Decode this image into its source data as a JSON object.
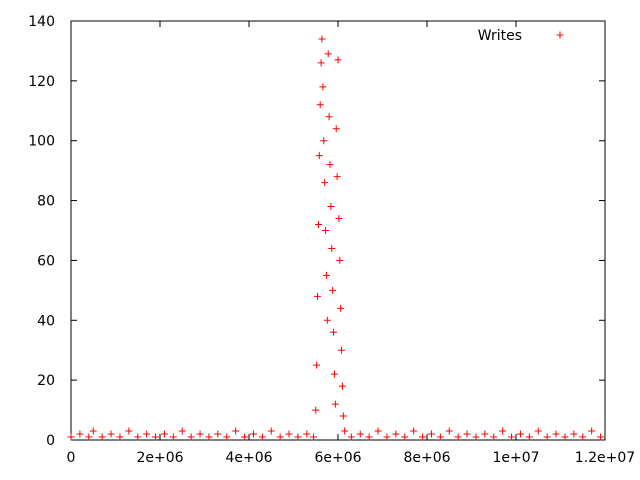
{
  "chart_data": {
    "type": "scatter",
    "title": "",
    "xlabel": "",
    "ylabel": "",
    "xlim": [
      0,
      12000000
    ],
    "ylim": [
      0,
      140
    ],
    "x_ticks": [
      0,
      2000000,
      4000000,
      6000000,
      8000000,
      10000000,
      12000000
    ],
    "x_tick_labels": [
      "0",
      "2e+06",
      "4e+06",
      "6e+06",
      "8e+06",
      "1e+07",
      "1.2e+07"
    ],
    "y_ticks": [
      0,
      20,
      40,
      60,
      80,
      100,
      120,
      140
    ],
    "y_tick_labels": [
      "0",
      "20",
      "40",
      "60",
      "80",
      "100",
      "120",
      "140"
    ],
    "grid": false,
    "legend": {
      "position": "top-right",
      "entries": [
        "Writes"
      ]
    },
    "marker": "+",
    "series": [
      {
        "name": "Writes",
        "color": "#ff0000",
        "points": [
          [
            0,
            1
          ],
          [
            200000,
            2
          ],
          [
            400000,
            1
          ],
          [
            500000,
            3
          ],
          [
            700000,
            1
          ],
          [
            900000,
            2
          ],
          [
            1100000,
            1
          ],
          [
            1300000,
            3
          ],
          [
            1500000,
            1
          ],
          [
            1700000,
            2
          ],
          [
            1900000,
            1
          ],
          [
            2100000,
            2
          ],
          [
            2300000,
            1
          ],
          [
            2500000,
            3
          ],
          [
            2700000,
            1
          ],
          [
            2900000,
            2
          ],
          [
            3100000,
            1
          ],
          [
            3300000,
            2
          ],
          [
            3500000,
            1
          ],
          [
            3700000,
            3
          ],
          [
            3900000,
            1
          ],
          [
            4100000,
            2
          ],
          [
            4300000,
            1
          ],
          [
            4500000,
            3
          ],
          [
            4700000,
            1
          ],
          [
            4900000,
            2
          ],
          [
            5100000,
            1
          ],
          [
            5300000,
            2
          ],
          [
            5450000,
            1
          ],
          [
            5500000,
            10
          ],
          [
            5520000,
            25
          ],
          [
            5540000,
            48
          ],
          [
            5560000,
            72
          ],
          [
            5580000,
            95
          ],
          [
            5600000,
            112
          ],
          [
            5620000,
            126
          ],
          [
            5640000,
            134
          ],
          [
            5660000,
            118
          ],
          [
            5680000,
            100
          ],
          [
            5700000,
            86
          ],
          [
            5720000,
            70
          ],
          [
            5740000,
            55
          ],
          [
            5760000,
            40
          ],
          [
            5780000,
            129
          ],
          [
            5800000,
            108
          ],
          [
            5820000,
            92
          ],
          [
            5840000,
            78
          ],
          [
            5860000,
            64
          ],
          [
            5880000,
            50
          ],
          [
            5900000,
            36
          ],
          [
            5920000,
            22
          ],
          [
            5940000,
            12
          ],
          [
            5960000,
            104
          ],
          [
            5980000,
            88
          ],
          [
            6000000,
            127
          ],
          [
            6020000,
            74
          ],
          [
            6040000,
            60
          ],
          [
            6060000,
            44
          ],
          [
            6080000,
            30
          ],
          [
            6100000,
            18
          ],
          [
            6120000,
            8
          ],
          [
            6150000,
            3
          ],
          [
            6300000,
            1
          ],
          [
            6500000,
            2
          ],
          [
            6700000,
            1
          ],
          [
            6900000,
            3
          ],
          [
            7100000,
            1
          ],
          [
            7300000,
            2
          ],
          [
            7500000,
            1
          ],
          [
            7700000,
            3
          ],
          [
            7900000,
            1
          ],
          [
            8100000,
            2
          ],
          [
            8300000,
            1
          ],
          [
            8500000,
            3
          ],
          [
            8700000,
            1
          ],
          [
            8900000,
            2
          ],
          [
            9100000,
            1
          ],
          [
            9300000,
            2
          ],
          [
            9500000,
            1
          ],
          [
            9700000,
            3
          ],
          [
            9900000,
            1
          ],
          [
            10100000,
            2
          ],
          [
            10300000,
            1
          ],
          [
            10500000,
            3
          ],
          [
            10700000,
            1
          ],
          [
            10900000,
            2
          ],
          [
            11100000,
            1
          ],
          [
            11300000,
            2
          ],
          [
            11500000,
            1
          ],
          [
            11700000,
            3
          ],
          [
            11900000,
            1
          ]
        ]
      }
    ]
  }
}
